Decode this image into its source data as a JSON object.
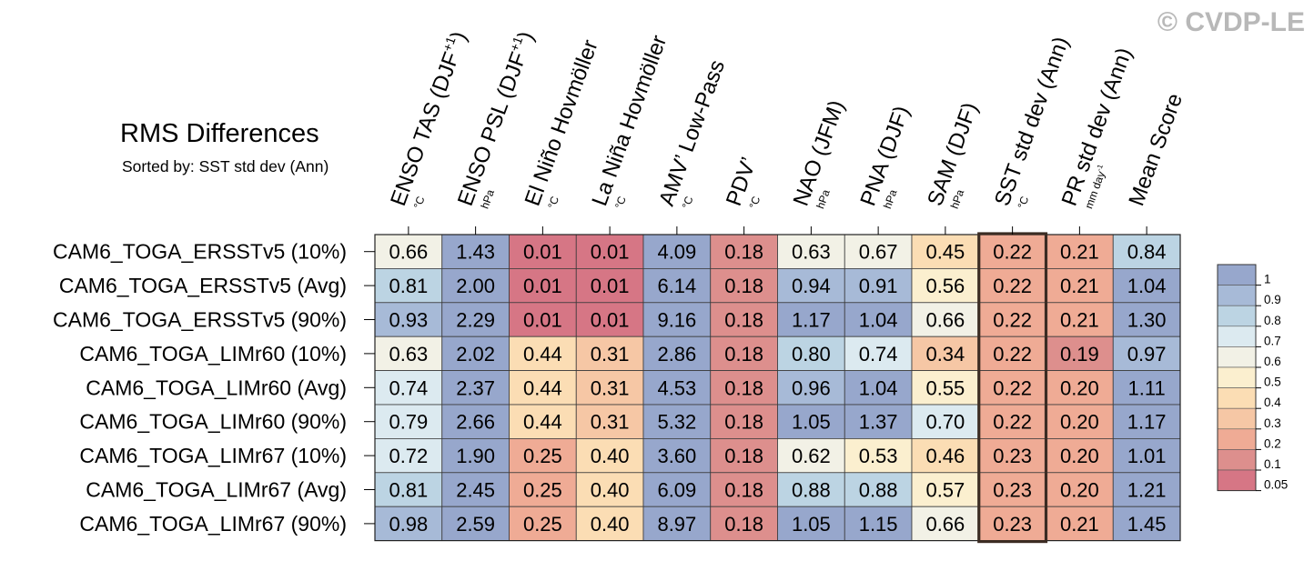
{
  "watermark": "© CVDP-LE",
  "chart_data": {
    "type": "heatmap",
    "title": "RMS Differences",
    "subtitle": "Sorted by: SST std dev (Ann)",
    "columns": [
      {
        "name": "ENSO TAS (DJF",
        "sup": "+1",
        "close": ")",
        "unit": "°C"
      },
      {
        "name": "ENSO PSL (DJF",
        "sup": "+1",
        "close": ")",
        "unit": "hPa"
      },
      {
        "name": "El Niño Hovmöller",
        "sup": "",
        "close": "",
        "unit": "°C"
      },
      {
        "name": "La Niña Hovmöller",
        "sup": "",
        "close": "",
        "unit": "°C"
      },
      {
        "name": "AMV’ Low-Pass",
        "sup": "",
        "close": "",
        "unit": "°C"
      },
      {
        "name": "PDV’",
        "sup": "",
        "close": "",
        "unit": "°C"
      },
      {
        "name": "NAO (JFM)",
        "sup": "",
        "close": "",
        "unit": "hPa"
      },
      {
        "name": "PNA (DJF)",
        "sup": "",
        "close": "",
        "unit": "hPa"
      },
      {
        "name": "SAM (DJF)",
        "sup": "",
        "close": "",
        "unit": "hPa"
      },
      {
        "name": "SST std dev (Ann)",
        "sup": "",
        "close": "",
        "unit": "°C"
      },
      {
        "name": "PR std dev (Ann)",
        "sup": "",
        "close": "",
        "unit": "mm day-1"
      },
      {
        "name": "Mean Score",
        "sup": "",
        "close": "",
        "unit": ""
      }
    ],
    "rows": [
      "CAM6_TOGA_ERSSTv5 (10%)",
      "CAM6_TOGA_ERSSTv5 (Avg)",
      "CAM6_TOGA_ERSSTv5 (90%)",
      "CAM6_TOGA_LIMr60 (10%)",
      "CAM6_TOGA_LIMr60 (Avg)",
      "CAM6_TOGA_LIMr60 (90%)",
      "CAM6_TOGA_LIMr67 (10%)",
      "CAM6_TOGA_LIMr67 (Avg)",
      "CAM6_TOGA_LIMr67 (90%)"
    ],
    "values": [
      [
        "0.66",
        "1.43",
        "0.01",
        "0.01",
        "4.09",
        "0.18",
        "0.63",
        "0.67",
        "0.45",
        "0.22",
        "0.21",
        "0.84"
      ],
      [
        "0.81",
        "2.00",
        "0.01",
        "0.01",
        "6.14",
        "0.18",
        "0.94",
        "0.91",
        "0.56",
        "0.22",
        "0.21",
        "1.04"
      ],
      [
        "0.93",
        "2.29",
        "0.01",
        "0.01",
        "9.16",
        "0.18",
        "1.17",
        "1.04",
        "0.66",
        "0.22",
        "0.21",
        "1.30"
      ],
      [
        "0.63",
        "2.02",
        "0.44",
        "0.31",
        "2.86",
        "0.18",
        "0.80",
        "0.74",
        "0.34",
        "0.22",
        "0.19",
        "0.97"
      ],
      [
        "0.74",
        "2.37",
        "0.44",
        "0.31",
        "4.53",
        "0.18",
        "0.96",
        "1.04",
        "0.55",
        "0.22",
        "0.20",
        "1.11"
      ],
      [
        "0.79",
        "2.66",
        "0.44",
        "0.31",
        "5.32",
        "0.18",
        "1.05",
        "1.37",
        "0.70",
        "0.22",
        "0.20",
        "1.17"
      ],
      [
        "0.72",
        "1.90",
        "0.25",
        "0.40",
        "3.60",
        "0.18",
        "0.62",
        "0.53",
        "0.46",
        "0.23",
        "0.20",
        "1.01"
      ],
      [
        "0.81",
        "2.45",
        "0.25",
        "0.40",
        "6.09",
        "0.18",
        "0.88",
        "0.88",
        "0.57",
        "0.23",
        "0.20",
        "1.21"
      ],
      [
        "0.98",
        "2.59",
        "0.25",
        "0.40",
        "8.97",
        "0.18",
        "1.05",
        "1.15",
        "0.66",
        "0.23",
        "0.21",
        "1.45"
      ]
    ],
    "highlighted_column": 9,
    "colorbar": {
      "labels": [
        "1",
        "0.9",
        "0.8",
        "0.7",
        "0.6",
        "0.5",
        "0.4",
        "0.3",
        "0.2",
        "0.1",
        "0.05"
      ],
      "colors": [
        "#97a7cc",
        "#a7bad7",
        "#bcd4e3",
        "#dceaf0",
        "#f2f1e6",
        "#fbefcf",
        "#fbddb4",
        "#f6c7a5",
        "#efab95",
        "#dd8f8d",
        "#d67685"
      ]
    }
  }
}
